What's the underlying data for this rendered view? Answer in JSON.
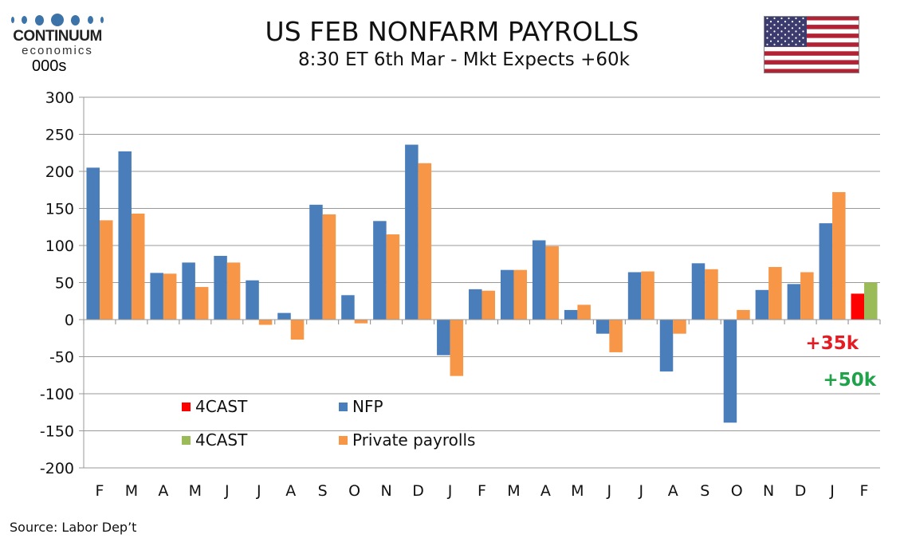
{
  "logo": {
    "line1": "CONTINUUM",
    "line2": "economics"
  },
  "title": "US FEB NONFARM PAYROLLS",
  "subtitle": "8:30 ET 6th Mar - Mkt Expects +60k",
  "source": "Source: Labor Dep’t",
  "flag_icon": "us-flag",
  "chart_data": {
    "type": "bar",
    "ylabel": "000s",
    "ylim": [
      -200,
      300
    ],
    "yticks": [
      300,
      250,
      200,
      150,
      100,
      50,
      0,
      -50,
      -100,
      -150,
      -200
    ],
    "grid": true,
    "categories": [
      "F",
      "M",
      "A",
      "M",
      "J",
      "J",
      "A",
      "S",
      "O",
      "N",
      "D",
      "J",
      "F",
      "M",
      "A",
      "M",
      "J",
      "J",
      "A",
      "S",
      "O",
      "N",
      "D",
      "J",
      "F"
    ],
    "series": [
      {
        "name": "NFP",
        "color": "#4a7ebb",
        "values": [
          205,
          227,
          63,
          77,
          86,
          53,
          9,
          155,
          33,
          133,
          236,
          -48,
          41,
          67,
          107,
          13,
          -19,
          64,
          -70,
          76,
          -139,
          40,
          48,
          130,
          null
        ]
      },
      {
        "name": "Private payrolls",
        "color": "#f79646",
        "values": [
          134,
          143,
          62,
          44,
          77,
          -7,
          -27,
          142,
          -5,
          115,
          211,
          -76,
          39,
          67,
          99,
          20,
          -44,
          65,
          -19,
          68,
          13,
          71,
          64,
          172,
          null
        ]
      },
      {
        "name": "4CAST",
        "color": "#ff0000",
        "values": [
          null,
          null,
          null,
          null,
          null,
          null,
          null,
          null,
          null,
          null,
          null,
          null,
          null,
          null,
          null,
          null,
          null,
          null,
          null,
          null,
          null,
          null,
          null,
          null,
          35
        ]
      },
      {
        "name": "4CAST",
        "color": "#9bbb59",
        "values": [
          null,
          null,
          null,
          null,
          null,
          null,
          null,
          null,
          null,
          null,
          null,
          null,
          null,
          null,
          null,
          null,
          null,
          null,
          null,
          null,
          null,
          null,
          null,
          null,
          50
        ]
      }
    ],
    "annotations": [
      {
        "text": "+35k",
        "color": "#e31b23"
      },
      {
        "text": "+50k",
        "color": "#1fa24a"
      }
    ],
    "legend": {
      "placement": "bottom-left",
      "entries": [
        {
          "label": "4CAST",
          "color": "#ff0000"
        },
        {
          "label": "NFP",
          "color": "#4a7ebb"
        },
        {
          "label": "4CAST",
          "color": "#9bbb59"
        },
        {
          "label": "Private payrolls",
          "color": "#f79646"
        }
      ]
    }
  }
}
